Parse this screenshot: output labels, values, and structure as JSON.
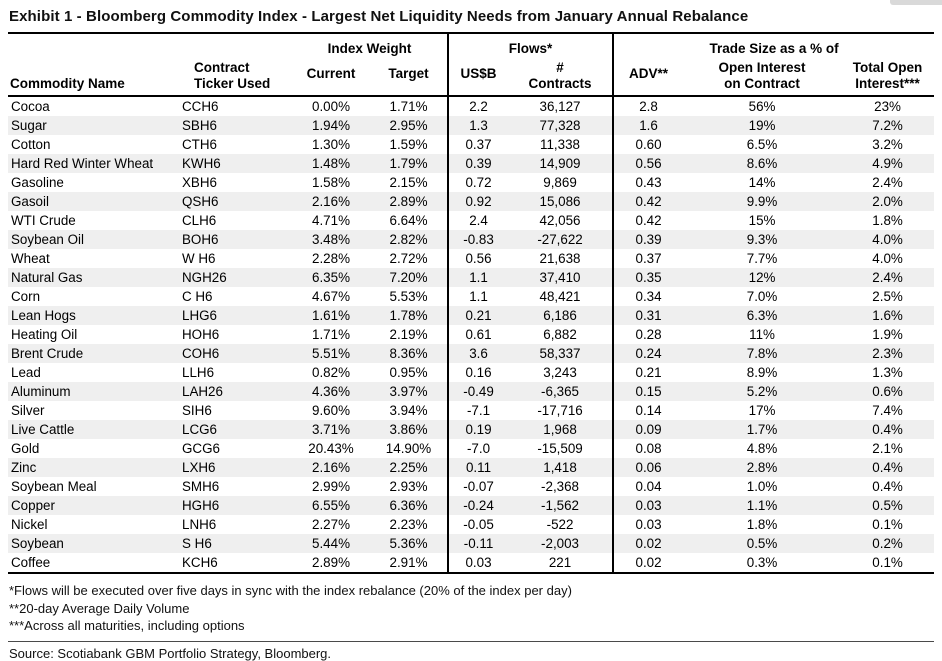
{
  "page": {
    "title": "Exhibit 1 - Bloomberg Commodity Index - Largest Net Liquidity Needs from January Annual Rebalance"
  },
  "table": {
    "group_headers": {
      "index_weight": "Index Weight",
      "flows": "Flows*",
      "trade_size": "Trade Size as a % of"
    },
    "column_headers": {
      "commodity": "Commodity Name",
      "ticker": "Contract\nTicker Used",
      "current": "Current",
      "target": "Target",
      "usdb": "US$B",
      "contracts": "#\nContracts",
      "adv": "ADV**",
      "oi_contract": "Open Interest\non Contract",
      "total_oi": "Total Open\nInterest***"
    },
    "rows": [
      [
        "Cocoa",
        "CCH6",
        "0.00%",
        "1.71%",
        "2.2",
        "36,127",
        "2.8",
        "56%",
        "23%"
      ],
      [
        "Sugar",
        "SBH6",
        "1.94%",
        "2.95%",
        "1.3",
        "77,328",
        "1.6",
        "19%",
        "7.2%"
      ],
      [
        "Cotton",
        "CTH6",
        "1.30%",
        "1.59%",
        "0.37",
        "11,338",
        "0.60",
        "6.5%",
        "3.2%"
      ],
      [
        "Hard Red Winter Wheat",
        "KWH6",
        "1.48%",
        "1.79%",
        "0.39",
        "14,909",
        "0.56",
        "8.6%",
        "4.9%"
      ],
      [
        "Gasoline",
        "XBH6",
        "1.58%",
        "2.15%",
        "0.72",
        "9,869",
        "0.43",
        "14%",
        "2.4%"
      ],
      [
        "Gasoil",
        "QSH6",
        "2.16%",
        "2.89%",
        "0.92",
        "15,086",
        "0.42",
        "9.9%",
        "2.0%"
      ],
      [
        "WTI Crude",
        "CLH6",
        "4.71%",
        "6.64%",
        "2.4",
        "42,056",
        "0.42",
        "15%",
        "1.8%"
      ],
      [
        "Soybean Oil",
        "BOH6",
        "3.48%",
        "2.82%",
        "-0.83",
        "-27,622",
        "0.39",
        "9.3%",
        "4.0%"
      ],
      [
        "Wheat",
        "W H6",
        "2.28%",
        "2.72%",
        "0.56",
        "21,638",
        "0.37",
        "7.7%",
        "4.0%"
      ],
      [
        "Natural Gas",
        "NGH26",
        "6.35%",
        "7.20%",
        "1.1",
        "37,410",
        "0.35",
        "12%",
        "2.4%"
      ],
      [
        "Corn",
        "C H6",
        "4.67%",
        "5.53%",
        "1.1",
        "48,421",
        "0.34",
        "7.0%",
        "2.5%"
      ],
      [
        "Lean Hogs",
        "LHG6",
        "1.61%",
        "1.78%",
        "0.21",
        "6,186",
        "0.31",
        "6.3%",
        "1.6%"
      ],
      [
        "Heating Oil",
        "HOH6",
        "1.71%",
        "2.19%",
        "0.61",
        "6,882",
        "0.28",
        "11%",
        "1.9%"
      ],
      [
        "Brent Crude",
        "COH6",
        "5.51%",
        "8.36%",
        "3.6",
        "58,337",
        "0.24",
        "7.8%",
        "2.3%"
      ],
      [
        "Lead",
        "LLH6",
        "0.82%",
        "0.95%",
        "0.16",
        "3,243",
        "0.21",
        "8.9%",
        "1.3%"
      ],
      [
        "Aluminum",
        "LAH26",
        "4.36%",
        "3.97%",
        "-0.49",
        "-6,365",
        "0.15",
        "5.2%",
        "0.6%"
      ],
      [
        "Silver",
        "SIH6",
        "9.60%",
        "3.94%",
        "-7.1",
        "-17,716",
        "0.14",
        "17%",
        "7.4%"
      ],
      [
        "Live Cattle",
        "LCG6",
        "3.71%",
        "3.86%",
        "0.19",
        "1,968",
        "0.09",
        "1.7%",
        "0.4%"
      ],
      [
        "Gold",
        "GCG6",
        "20.43%",
        "14.90%",
        "-7.0",
        "-15,509",
        "0.08",
        "4.8%",
        "2.1%"
      ],
      [
        "Zinc",
        "LXH6",
        "2.16%",
        "2.25%",
        "0.11",
        "1,418",
        "0.06",
        "2.8%",
        "0.4%"
      ],
      [
        "Soybean Meal",
        "SMH6",
        "2.99%",
        "2.93%",
        "-0.07",
        "-2,368",
        "0.04",
        "1.0%",
        "0.4%"
      ],
      [
        "Copper",
        "HGH6",
        "6.55%",
        "6.36%",
        "-0.24",
        "-1,562",
        "0.03",
        "1.1%",
        "0.5%"
      ],
      [
        "Nickel",
        "LNH6",
        "2.27%",
        "2.23%",
        "-0.05",
        "-522",
        "0.03",
        "1.8%",
        "0.1%"
      ],
      [
        "Soybean",
        "S H6",
        "5.44%",
        "5.36%",
        "-0.11",
        "-2,003",
        "0.02",
        "0.5%",
        "0.2%"
      ],
      [
        "Coffee",
        "KCH6",
        "2.89%",
        "2.91%",
        "0.03",
        "221",
        "0.02",
        "0.3%",
        "0.1%"
      ]
    ]
  },
  "footnotes": [
    "*Flows will be executed over five days in sync with the index rebalance (20% of the index per day)",
    "**20-day Average Daily Volume",
    "***Across all maturities, including options"
  ],
  "source": "Source: Scotiabank GBM Portfolio Strategy, Bloomberg."
}
